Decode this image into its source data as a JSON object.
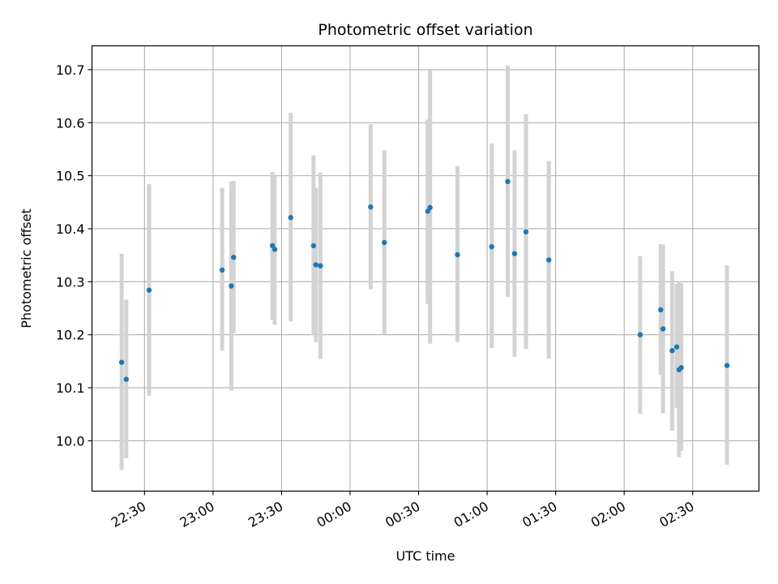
{
  "chart_data": {
    "type": "scatter",
    "title": "Photometric offset variation",
    "xlabel": "UTC time",
    "ylabel": "Photometric offset",
    "x_tick_labels": [
      "22:30",
      "23:00",
      "23:30",
      "00:00",
      "00:30",
      "01:00",
      "01:30",
      "02:00",
      "02:30"
    ],
    "x_tick_minutes": [
      1350,
      1380,
      1410,
      1440,
      1470,
      1500,
      1530,
      1560,
      1590
    ],
    "xlim_minutes": [
      1327,
      1619
    ],
    "y_ticks": [
      "10.0",
      "10.1",
      "10.2",
      "10.3",
      "10.4",
      "10.5",
      "10.6",
      "10.7"
    ],
    "ylim": [
      9.905,
      10.745
    ],
    "grid": true,
    "point_color": "#1f77b4",
    "errorbar_color": "#d3d3d3",
    "points": [
      {
        "t": "22:20",
        "y": 10.148,
        "lo": 9.945,
        "hi": 10.353
      },
      {
        "t": "22:22",
        "y": 10.116,
        "lo": 9.967,
        "hi": 10.266
      },
      {
        "t": "22:32",
        "y": 10.284,
        "lo": 10.085,
        "hi": 10.484
      },
      {
        "t": "23:04",
        "y": 10.322,
        "lo": 10.17,
        "hi": 10.477
      },
      {
        "t": "23:08",
        "y": 10.292,
        "lo": 10.095,
        "hi": 10.489
      },
      {
        "t": "23:09",
        "y": 10.346,
        "lo": 10.203,
        "hi": 10.49
      },
      {
        "t": "23:26",
        "y": 10.368,
        "lo": 10.228,
        "hi": 10.507
      },
      {
        "t": "23:27",
        "y": 10.361,
        "lo": 10.219,
        "hi": 10.502
      },
      {
        "t": "23:34",
        "y": 10.421,
        "lo": 10.225,
        "hi": 10.619
      },
      {
        "t": "23:44",
        "y": 10.368,
        "lo": 10.2,
        "hi": 10.538
      },
      {
        "t": "23:45",
        "y": 10.332,
        "lo": 10.186,
        "hi": 10.477
      },
      {
        "t": "23:47",
        "y": 10.33,
        "lo": 10.154,
        "hi": 10.506
      },
      {
        "t": "00:09",
        "y": 10.441,
        "lo": 10.286,
        "hi": 10.597
      },
      {
        "t": "00:15",
        "y": 10.374,
        "lo": 10.201,
        "hi": 10.548
      },
      {
        "t": "00:34",
        "y": 10.433,
        "lo": 10.258,
        "hi": 10.606
      },
      {
        "t": "00:35",
        "y": 10.44,
        "lo": 10.183,
        "hi": 10.699
      },
      {
        "t": "00:47",
        "y": 10.351,
        "lo": 10.186,
        "hi": 10.518
      },
      {
        "t": "01:02",
        "y": 10.366,
        "lo": 10.175,
        "hi": 10.561
      },
      {
        "t": "01:09",
        "y": 10.489,
        "lo": 10.271,
        "hi": 10.708
      },
      {
        "t": "01:12",
        "y": 10.353,
        "lo": 10.158,
        "hi": 10.548
      },
      {
        "t": "01:17",
        "y": 10.394,
        "lo": 10.173,
        "hi": 10.616
      },
      {
        "t": "01:27",
        "y": 10.341,
        "lo": 10.155,
        "hi": 10.528
      },
      {
        "t": "02:07",
        "y": 10.2,
        "lo": 10.051,
        "hi": 10.348
      },
      {
        "t": "02:16",
        "y": 10.247,
        "lo": 10.124,
        "hi": 10.371
      },
      {
        "t": "02:17",
        "y": 10.211,
        "lo": 10.052,
        "hi": 10.37
      },
      {
        "t": "02:21",
        "y": 10.17,
        "lo": 10.019,
        "hi": 10.32
      },
      {
        "t": "02:23",
        "y": 10.177,
        "lo": 10.062,
        "hi": 10.296
      },
      {
        "t": "02:24",
        "y": 10.134,
        "lo": 9.969,
        "hi": 10.298
      },
      {
        "t": "02:25",
        "y": 10.138,
        "lo": 9.981,
        "hi": 10.297
      },
      {
        "t": "02:45",
        "y": 10.142,
        "lo": 9.955,
        "hi": 10.331
      }
    ]
  }
}
